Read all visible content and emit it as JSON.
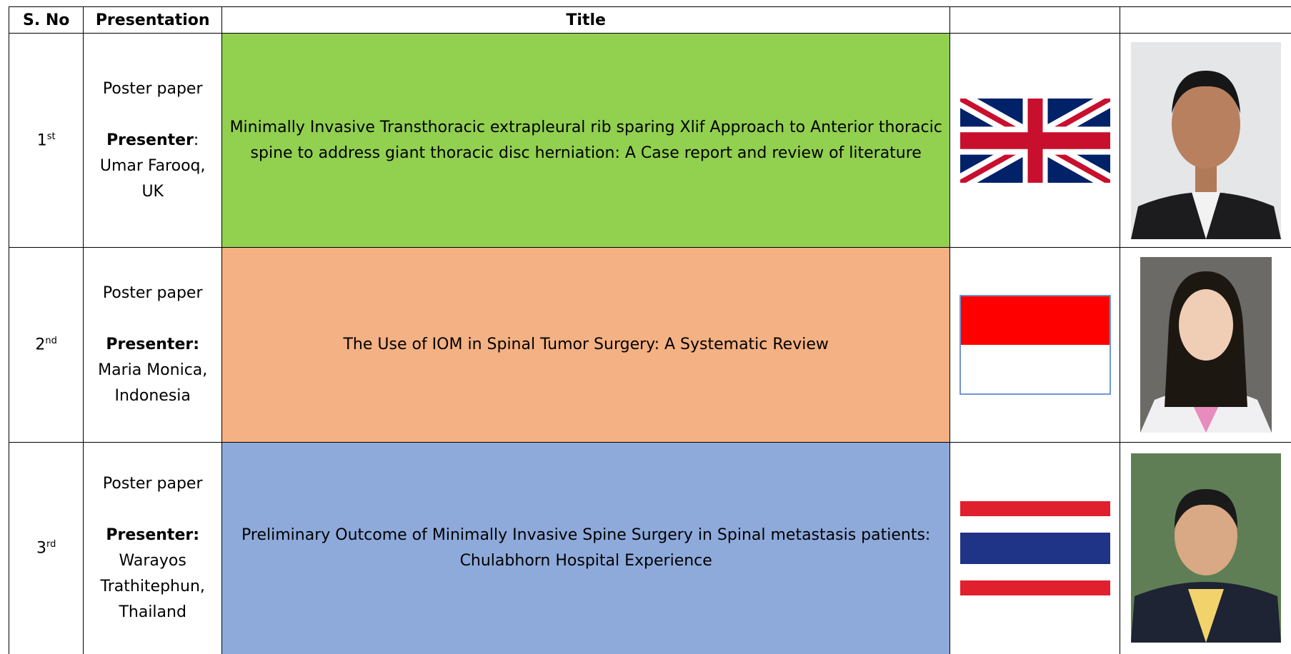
{
  "table": {
    "header": [
      "S. No",
      "Presentation",
      "Title"
    ],
    "rows": [
      {
        "rank": "1",
        "suffix": "st",
        "presentation": "Poster paper",
        "presenter_label": "Presenter",
        "presenter_sep": ":",
        "presenter": "Umar Farooq, UK",
        "title": "Minimally Invasive Transthoracic extrapleural rib sparing Xlif Approach to Anterior thoracic spine to address giant thoracic disc herniation: A Case report and review of literature"
      },
      {
        "rank": "2",
        "suffix": "nd",
        "presentation": "Poster paper",
        "presenter_label": "Presenter:",
        "presenter": "Maria Monica, Indonesia",
        "title": "The Use of IOM in Spinal Tumor Surgery: A Systematic Review"
      },
      {
        "rank": "3",
        "suffix": "rd",
        "presentation": "Poster paper",
        "presenter_label": "Presenter:",
        "presenter": "Warayos Trathitephun, Thailand",
        "title": "Preliminary Outcome of Minimally Invasive Spine Surgery in Spinal metastasis patients: Chulabhorn Hospital Experience"
      }
    ]
  }
}
